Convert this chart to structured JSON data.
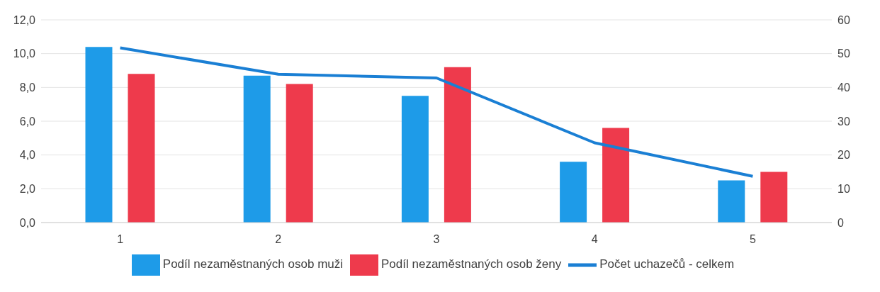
{
  "chart_data": {
    "type": "bar",
    "categories": [
      "1",
      "2",
      "3",
      "4",
      "5"
    ],
    "series": [
      {
        "name": "Podíl nezaměstnaných osob muži",
        "color": "#1e9be8",
        "values": [
          10.4,
          8.7,
          7.5,
          3.6,
          2.5
        ]
      },
      {
        "name": "Podíl nezaměstnaných osob ženy",
        "color": "#ee3a4c",
        "values": [
          8.8,
          8.2,
          9.2,
          5.6,
          3.0
        ]
      },
      {
        "name": "Počet uchazečů - celkem",
        "type": "line",
        "axis": "y2",
        "color": "#1a7fd4",
        "values": [
          51.7,
          43.9,
          42.8,
          23.6,
          13.7
        ]
      }
    ],
    "ylim": [
      0,
      12
    ],
    "yticks": [
      {
        "value": 0,
        "label": "0,0"
      },
      {
        "value": 2,
        "label": "2,0"
      },
      {
        "value": 4,
        "label": "4,0"
      },
      {
        "value": 6,
        "label": "6,0"
      },
      {
        "value": 8,
        "label": "8,0"
      },
      {
        "value": 10,
        "label": "10,0"
      },
      {
        "value": 12,
        "label": "12,0"
      }
    ],
    "y2lim": [
      0,
      60
    ],
    "y2ticks": [
      0,
      10,
      20,
      30,
      40,
      50,
      60
    ],
    "grid": "y",
    "legend": "bottom",
    "marker": "none"
  }
}
